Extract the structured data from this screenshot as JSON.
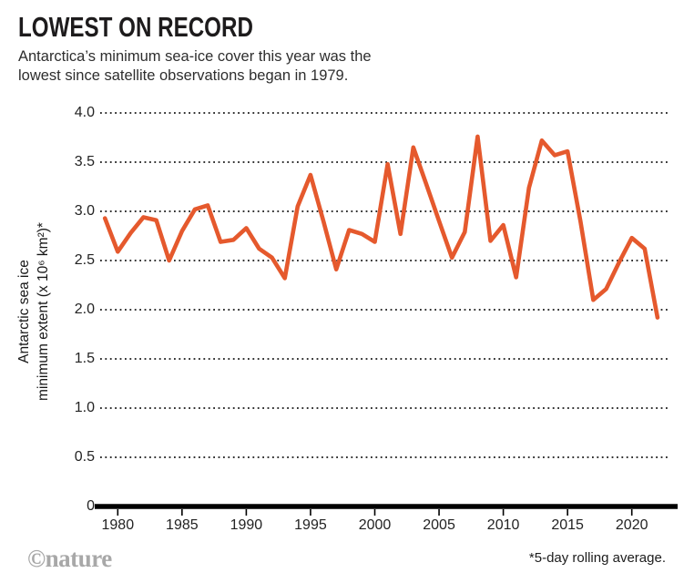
{
  "header": {
    "title": "LOWEST ON RECORD",
    "subtitle_line1": "Antarctica’s minimum sea-ice cover this year was the",
    "subtitle_line2": "lowest since satellite observations began in 1979."
  },
  "footer": {
    "logo": "©nature",
    "footnote": "*5-day rolling average."
  },
  "chart_data": {
    "type": "line",
    "title": "LOWEST ON RECORD",
    "ylabel_line1": "Antarctic sea ice",
    "ylabel_line2": "minimum extent (x 10⁶ km²)*",
    "x": [
      1979,
      1980,
      1981,
      1982,
      1983,
      1984,
      1985,
      1986,
      1987,
      1988,
      1989,
      1990,
      1991,
      1992,
      1993,
      1994,
      1995,
      1996,
      1997,
      1998,
      1999,
      2000,
      2001,
      2002,
      2003,
      2004,
      2005,
      2006,
      2007,
      2008,
      2009,
      2010,
      2011,
      2012,
      2013,
      2014,
      2015,
      2016,
      2017,
      2018,
      2019,
      2020,
      2021,
      2022
    ],
    "values": [
      2.93,
      2.59,
      2.78,
      2.94,
      2.91,
      2.5,
      2.8,
      3.02,
      3.06,
      2.69,
      2.71,
      2.83,
      2.62,
      2.53,
      2.32,
      3.05,
      3.37,
      2.9,
      2.41,
      2.81,
      2.77,
      2.69,
      3.48,
      2.77,
      3.65,
      3.28,
      2.9,
      2.53,
      2.79,
      3.76,
      2.7,
      2.86,
      2.33,
      3.24,
      3.72,
      3.57,
      3.61,
      2.9,
      2.1,
      2.21,
      2.48,
      2.73,
      2.62,
      1.92
    ],
    "x_ticks": [
      1980,
      1985,
      1990,
      1995,
      2000,
      2005,
      2010,
      2015,
      2020
    ],
    "x_tick_labels": [
      "1980",
      "1985",
      "1990",
      "1995",
      "2000",
      "2005",
      "2010",
      "2015",
      "2020"
    ],
    "y_ticks": [
      0,
      0.5,
      1.0,
      1.5,
      2.0,
      2.5,
      3.0,
      3.5,
      4.0
    ],
    "y_tick_labels": [
      "0",
      "0.5",
      "1.0",
      "1.5",
      "2.0",
      "2.5",
      "3.0",
      "3.5",
      "4.0"
    ],
    "ylim": [
      0,
      4.0
    ],
    "xlim": [
      1979,
      2022
    ],
    "grid": "dotted-horizontal",
    "legend": "none",
    "line_color": "#e5592d",
    "axis_color": "#000000",
    "background_color": "#ffffff"
  }
}
